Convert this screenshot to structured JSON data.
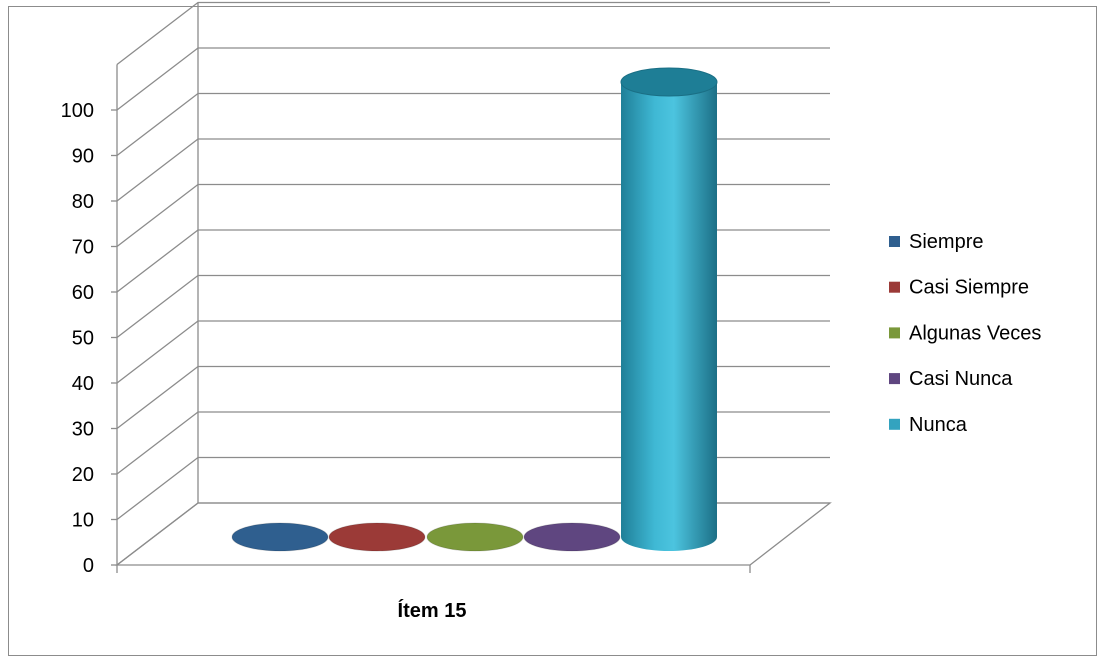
{
  "chart_data": {
    "type": "bar",
    "style": "3d-cylinder",
    "categories": [
      "Ítem 15"
    ],
    "series": [
      {
        "name": "Siempre",
        "values": [
          0
        ],
        "color": "#2f5f8f"
      },
      {
        "name": "Casi Siempre",
        "values": [
          0
        ],
        "color": "#9b3a37"
      },
      {
        "name": "Algunas Veces",
        "values": [
          0
        ],
        "color": "#7a983a"
      },
      {
        "name": "Casi Nunca",
        "values": [
          0
        ],
        "color": "#5f4680"
      },
      {
        "name": "Nunca",
        "values": [
          100
        ],
        "color": "#33a3bf"
      }
    ],
    "yticks": [
      "0",
      "10",
      "20",
      "30",
      "40",
      "50",
      "60",
      "70",
      "80",
      "90",
      "100"
    ],
    "ylim": [
      0,
      110
    ],
    "grid": true,
    "legend": "right",
    "title": "",
    "xlabel": "",
    "ylabel": ""
  }
}
